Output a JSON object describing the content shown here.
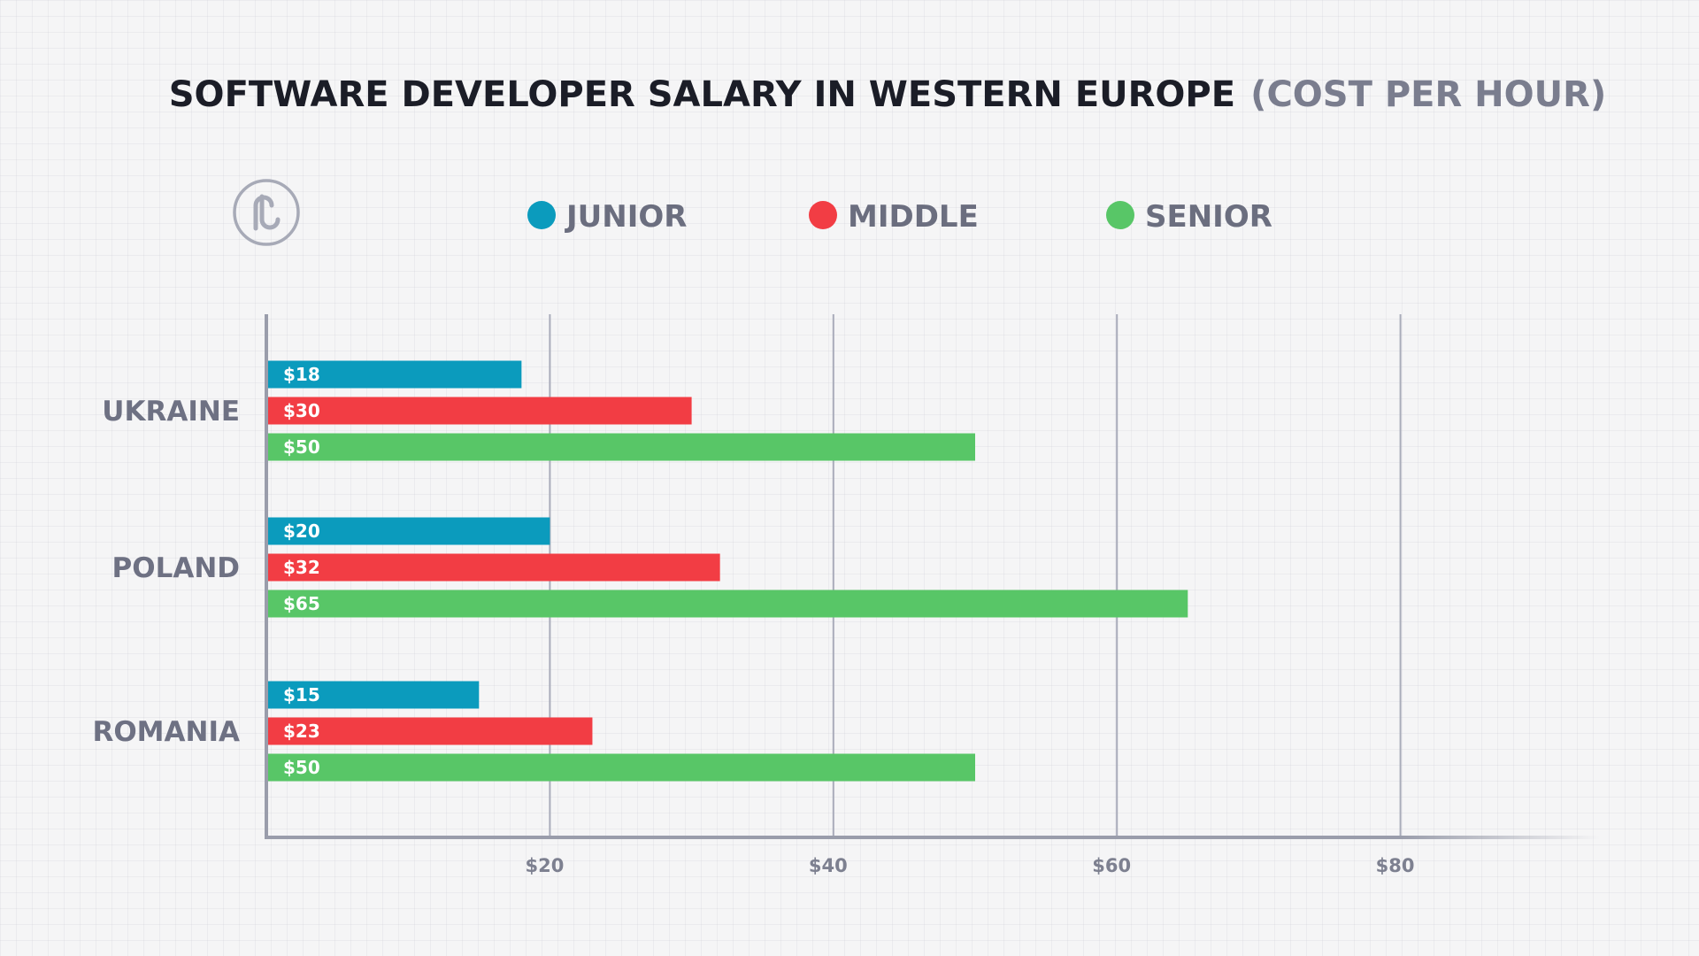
{
  "chart_data": {
    "type": "bar",
    "orientation": "horizontal",
    "title": "SOFTWARE DEVELOPER SALARY IN WESTERN EUROPE",
    "subtitle": "(COST PER HOUR)",
    "categories": [
      "UKRAINE",
      "POLAND",
      "ROMANIA"
    ],
    "series": [
      {
        "name": "JUNIOR",
        "color": "#0b9bbd",
        "values": [
          18,
          20,
          15
        ],
        "labels": [
          "$18",
          "$20",
          "$15"
        ]
      },
      {
        "name": "MIDDLE",
        "color": "#f23d44",
        "values": [
          30,
          32,
          23
        ],
        "labels": [
          "$30",
          "$32",
          "$23"
        ]
      },
      {
        "name": "SENIOR",
        "color": "#58c667",
        "values": [
          50,
          65,
          50
        ],
        "labels": [
          "$50",
          "$65",
          "$50"
        ]
      }
    ],
    "x_ticks": [
      20,
      40,
      60,
      80
    ],
    "x_tick_labels": [
      "$20",
      "$40",
      "$60",
      "$80"
    ],
    "xlim": [
      0,
      90
    ],
    "legend_position": "top",
    "grid": "vertical"
  },
  "logo": {
    "icon": "brand-logo-icon",
    "color": "#a7aab7"
  },
  "colors": {
    "axis": "#9a9dab",
    "background": "#f5f5f6"
  }
}
